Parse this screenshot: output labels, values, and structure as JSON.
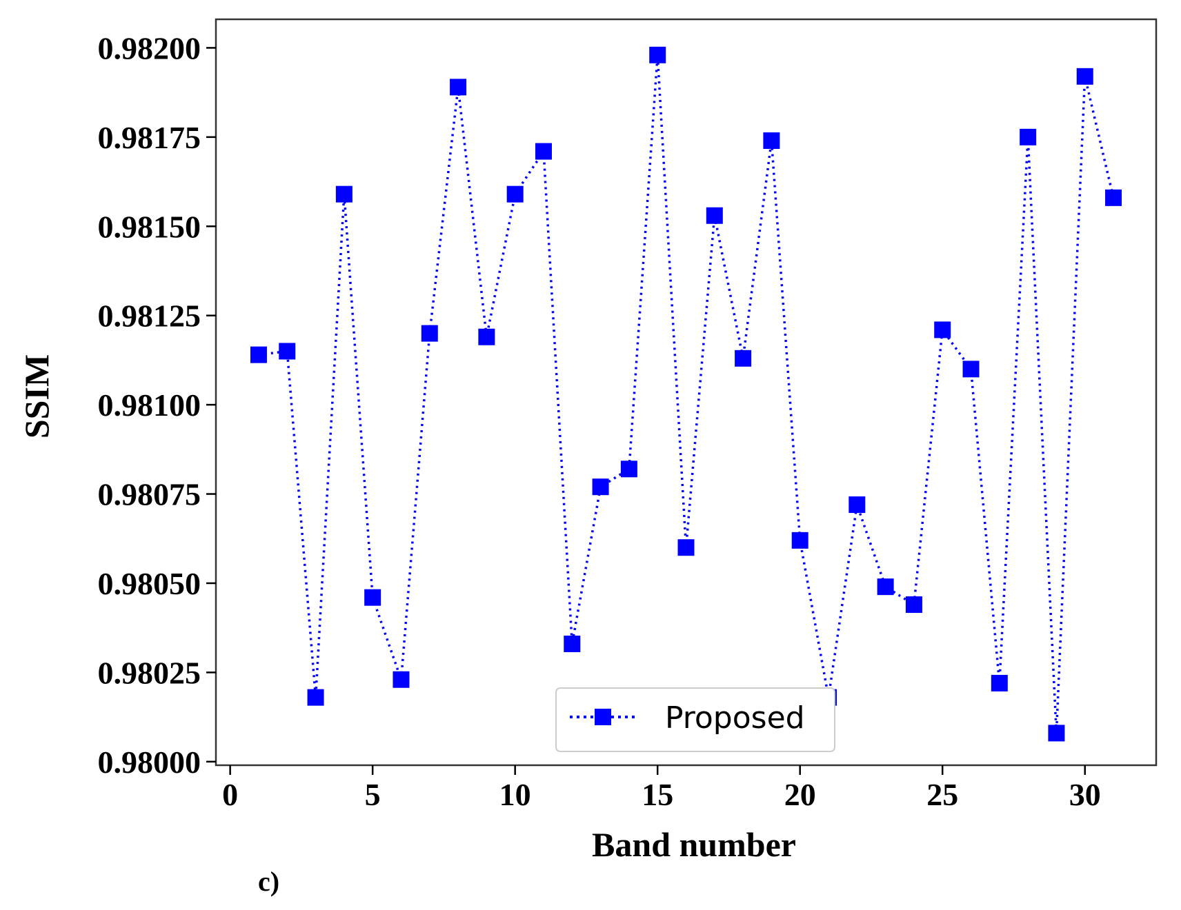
{
  "chart_data": {
    "type": "line",
    "title": "",
    "xlabel": "Band number",
    "ylabel": "SSIM",
    "panel_label": "c)",
    "xlim": [
      -0.5,
      32.5
    ],
    "ylim": [
      0.97999,
      0.98208
    ],
    "x_ticks": [
      0,
      5,
      10,
      15,
      20,
      25,
      30
    ],
    "y_ticks": [
      0.98,
      0.98025,
      0.9805,
      0.98075,
      0.981,
      0.98125,
      0.9815,
      0.98175,
      0.982
    ],
    "x_tick_labels": [
      "0",
      "5",
      "10",
      "15",
      "20",
      "25",
      "30"
    ],
    "y_tick_labels": [
      "0.98000",
      "0.98025",
      "0.98050",
      "0.98075",
      "0.98100",
      "0.98125",
      "0.98150",
      "0.98175",
      "0.98200"
    ],
    "grid": false,
    "legend_position": "lower-center",
    "series": [
      {
        "name": "Proposed",
        "color": "#0000ff",
        "line_style": "dotted",
        "marker": "square",
        "x": [
          1,
          2,
          3,
          4,
          5,
          6,
          7,
          8,
          9,
          10,
          11,
          12,
          13,
          14,
          15,
          16,
          17,
          18,
          19,
          20,
          21,
          22,
          23,
          24,
          25,
          26,
          27,
          28,
          29,
          30,
          31
        ],
        "y": [
          0.98114,
          0.98115,
          0.98018,
          0.98159,
          0.98046,
          0.98023,
          0.9812,
          0.98189,
          0.98119,
          0.98159,
          0.98171,
          0.98033,
          0.98077,
          0.98082,
          0.98198,
          0.9806,
          0.98153,
          0.98113,
          0.98174,
          0.98062,
          0.98018,
          0.98072,
          0.98049,
          0.98044,
          0.98121,
          0.9811,
          0.98022,
          0.98175,
          0.98008,
          0.98192,
          0.98158
        ]
      }
    ]
  }
}
